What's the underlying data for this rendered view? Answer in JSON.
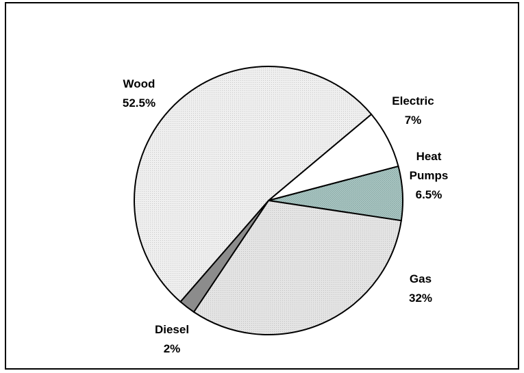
{
  "chart_data": {
    "type": "pie",
    "title": "",
    "slices": [
      {
        "label": "Wood",
        "value": 52.5,
        "value_label": "52.5%",
        "color": "#eeeeee",
        "pattern": "dots"
      },
      {
        "label": "Electric",
        "value": 7,
        "value_label": "7%",
        "color": "#ffffff",
        "pattern": "none"
      },
      {
        "label": "Heat Pumps",
        "value": 6.5,
        "value_label": "6.5%",
        "color": "#a9c6c3",
        "pattern": "crosshatch"
      },
      {
        "label": "Gas",
        "value": 32,
        "value_label": "32%",
        "color": "#e2e2e2",
        "pattern": "dots"
      },
      {
        "label": "Diesel",
        "value": 2,
        "value_label": "2%",
        "color": "#8c8c8c",
        "pattern": "none"
      }
    ],
    "legend": "none",
    "data_labels": "outside"
  }
}
